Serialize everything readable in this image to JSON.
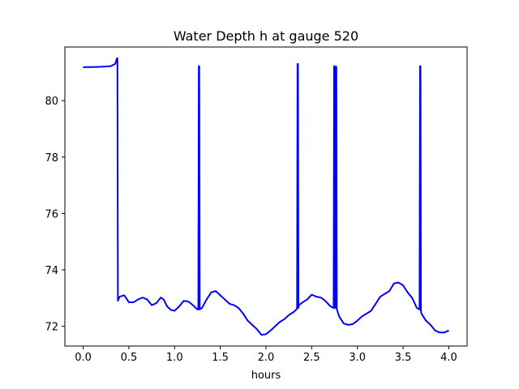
{
  "chart_data": {
    "type": "line",
    "title": "Water Depth h at gauge 520",
    "xlabel": "hours",
    "ylabel": "",
    "xlim": [
      -0.2,
      4.2
    ],
    "ylim": [
      71.3,
      81.9
    ],
    "xticks": [
      0.0,
      0.5,
      1.0,
      1.5,
      2.0,
      2.5,
      3.0,
      3.5,
      4.0
    ],
    "xtick_labels": [
      "0.0",
      "0.5",
      "1.0",
      "1.5",
      "2.0",
      "2.5",
      "3.0",
      "3.5",
      "4.0"
    ],
    "yticks": [
      72,
      74,
      76,
      78,
      80
    ],
    "ytick_labels": [
      "72",
      "74",
      "76",
      "78",
      "80"
    ],
    "grid": false,
    "legend": "none",
    "series": [
      {
        "color": "#0000ff",
        "x": [
          0.0,
          0.05,
          0.1,
          0.2,
          0.3,
          0.35,
          0.37,
          0.375,
          0.38,
          0.385,
          0.4,
          0.45,
          0.5,
          0.55,
          0.6,
          0.65,
          0.7,
          0.75,
          0.8,
          0.85,
          0.88,
          0.92,
          0.96,
          1.0,
          1.05,
          1.1,
          1.15,
          1.2,
          1.25,
          1.26,
          1.265,
          1.27,
          1.275,
          1.3,
          1.35,
          1.4,
          1.45,
          1.5,
          1.55,
          1.6,
          1.65,
          1.7,
          1.75,
          1.8,
          1.85,
          1.9,
          1.95,
          2.0,
          2.05,
          2.1,
          2.15,
          2.2,
          2.25,
          2.3,
          2.34,
          2.345,
          2.35,
          2.355,
          2.36,
          2.4,
          2.45,
          2.5,
          2.55,
          2.6,
          2.65,
          2.7,
          2.74,
          2.745,
          2.75,
          2.755,
          2.76,
          2.765,
          2.77,
          2.775,
          2.8,
          2.85,
          2.9,
          2.95,
          3.0,
          3.05,
          3.1,
          3.15,
          3.2,
          3.25,
          3.3,
          3.35,
          3.4,
          3.45,
          3.5,
          3.55,
          3.6,
          3.65,
          3.68,
          3.685,
          3.69,
          3.695,
          3.7,
          3.75,
          3.8,
          3.85,
          3.9,
          3.95,
          4.0
        ],
        "y": [
          81.18,
          81.19,
          81.19,
          81.2,
          81.22,
          81.3,
          81.5,
          81.5,
          72.9,
          72.95,
          73.05,
          73.1,
          72.85,
          72.85,
          72.95,
          73.02,
          72.95,
          72.75,
          72.82,
          73.02,
          72.95,
          72.7,
          72.58,
          72.55,
          72.7,
          72.9,
          72.88,
          72.75,
          72.6,
          72.6,
          81.22,
          81.22,
          72.6,
          72.65,
          72.95,
          73.2,
          73.25,
          73.1,
          72.95,
          72.8,
          72.75,
          72.65,
          72.45,
          72.2,
          72.05,
          71.9,
          71.7,
          71.72,
          71.85,
          72.0,
          72.15,
          72.25,
          72.4,
          72.5,
          72.62,
          81.3,
          81.3,
          72.65,
          72.75,
          72.85,
          72.95,
          73.12,
          73.05,
          73.02,
          72.9,
          72.72,
          72.65,
          81.22,
          81.22,
          72.65,
          72.65,
          81.2,
          81.2,
          72.6,
          72.35,
          72.1,
          72.05,
          72.08,
          72.2,
          72.35,
          72.45,
          72.55,
          72.8,
          73.05,
          73.15,
          73.25,
          73.52,
          73.55,
          73.45,
          73.2,
          73.0,
          72.65,
          72.6,
          81.22,
          81.22,
          72.55,
          72.45,
          72.2,
          72.05,
          71.85,
          71.78,
          71.78,
          71.85
        ]
      }
    ]
  }
}
